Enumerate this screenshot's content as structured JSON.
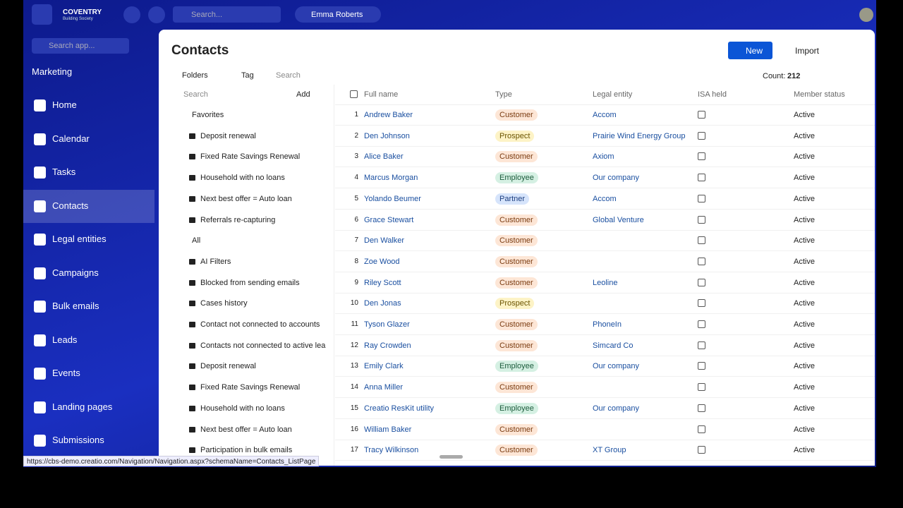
{
  "topbar": {
    "brand": "COVENTRY",
    "brand_sub": "Building Society",
    "search": "Search...",
    "user": "Emma Roberts"
  },
  "sidebar": {
    "search": "Search app...",
    "workspace": "Marketing",
    "active": 3,
    "items": [
      "Home",
      "Calendar",
      "Tasks",
      "Contacts",
      "Legal entities",
      "Campaigns",
      "Bulk emails",
      "Leads",
      "Events",
      "Landing pages",
      "Submissions"
    ]
  },
  "page": {
    "title": "Contacts",
    "new": "New",
    "import": "Import",
    "toolbar": {
      "folders": "Folders",
      "tag": "Tag",
      "search": "Search",
      "count_label": "Count:",
      "count": 212
    }
  },
  "folders": {
    "search": "Search",
    "add": "Add",
    "groups": [
      {
        "label": "Favorites",
        "items": [
          {
            "label": "Deposit renewal"
          },
          {
            "label": "Fixed Rate Savings Renewal"
          },
          {
            "label": "Household with no loans"
          },
          {
            "label": "Next best offer = Auto loan"
          },
          {
            "label": "Referrals re-capturing"
          }
        ]
      },
      {
        "label": "All",
        "items": [
          {
            "label": "AI Filters"
          },
          {
            "label": "Blocked from sending emails",
            "expandable": true
          },
          {
            "label": "Cases history",
            "expandable": true
          },
          {
            "label": "Contact not connected to accounts"
          },
          {
            "label": "Contacts not connected to active lea"
          },
          {
            "label": "Deposit renewal"
          },
          {
            "label": "Fixed Rate Savings Renewal"
          },
          {
            "label": "Household with no loans"
          },
          {
            "label": "Next best offer = Auto loan"
          },
          {
            "label": "Participation in bulk emails",
            "expandable": true
          }
        ]
      }
    ]
  },
  "table": {
    "columns": [
      "Full name",
      "Type",
      "Legal entity",
      "ISA held",
      "Member status"
    ],
    "rows": [
      {
        "n": 1,
        "name": "Andrew Baker",
        "type": "Customer",
        "entity": "Accom",
        "status": "Active"
      },
      {
        "n": 2,
        "name": "Den Johnson",
        "type": "Prospect",
        "entity": "Prairie Wind Energy Group",
        "status": "Active"
      },
      {
        "n": 3,
        "name": "Alice Baker",
        "type": "Customer",
        "entity": "Axiom",
        "status": "Active"
      },
      {
        "n": 4,
        "name": "Marcus Morgan",
        "type": "Employee",
        "entity": "Our company",
        "status": "Active"
      },
      {
        "n": 5,
        "name": "Yolando Beumer",
        "type": "Partner",
        "entity": "Accom",
        "status": "Active"
      },
      {
        "n": 6,
        "name": "Grace Stewart",
        "type": "Customer",
        "entity": "Global Venture",
        "status": "Active"
      },
      {
        "n": 7,
        "name": "Den Walker",
        "type": "Customer",
        "status": "Active"
      },
      {
        "n": 8,
        "name": "Zoe Wood",
        "type": "Customer",
        "status": "Active"
      },
      {
        "n": 9,
        "name": "Riley Scott",
        "type": "Customer",
        "entity": "Leoline",
        "status": "Active"
      },
      {
        "n": 10,
        "name": "Den Jonas",
        "type": "Prospect",
        "status": "Active"
      },
      {
        "n": 11,
        "name": "Tyson Glazer",
        "type": "Customer",
        "entity": "PhoneIn",
        "status": "Active"
      },
      {
        "n": 12,
        "name": "Ray Crowden",
        "type": "Customer",
        "entity": "Simcard Co",
        "status": "Active"
      },
      {
        "n": 13,
        "name": "Emily Clark",
        "type": "Employee",
        "entity": "Our company",
        "status": "Active"
      },
      {
        "n": 14,
        "name": "Anna Miller",
        "type": "Customer",
        "status": "Active"
      },
      {
        "n": 15,
        "name": "Creatio ResKit utility",
        "type": "Employee",
        "entity": "Our company",
        "status": "Active"
      },
      {
        "n": 16,
        "name": "William Baker",
        "type": "Customer",
        "status": "Active"
      },
      {
        "n": 17,
        "name": "Tracy Wilkinson",
        "type": "Customer",
        "entity": "XT Group",
        "status": "Active"
      }
    ]
  },
  "status_url": "https://cbs-demo.creatio.com/Navigation/Navigation.aspx?schemaName=Contacts_ListPage"
}
